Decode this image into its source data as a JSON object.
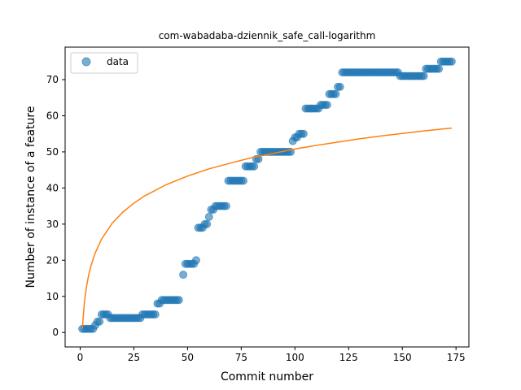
{
  "chart_data": {
    "type": "scatter",
    "title": "com-wabadaba-dziennik_safe_call-logarithm",
    "xlabel": "Commit number",
    "ylabel": "Number of instance of a feature",
    "xlim": [
      -7,
      181
    ],
    "ylim": [
      -4,
      79
    ],
    "xticks": [
      0,
      25,
      50,
      75,
      100,
      125,
      150,
      175
    ],
    "yticks": [
      0,
      10,
      20,
      30,
      40,
      50,
      60,
      70
    ],
    "grid": false,
    "legend_position": "top-left",
    "colors": {
      "data": "#1f77b4",
      "fit": "#ff7f0e"
    },
    "series": [
      {
        "name": "data",
        "kind": "scatter",
        "points": [
          [
            1,
            1
          ],
          [
            2,
            1
          ],
          [
            3,
            1
          ],
          [
            4,
            1
          ],
          [
            5,
            1
          ],
          [
            6,
            1
          ],
          [
            7,
            2
          ],
          [
            8,
            3
          ],
          [
            9,
            3
          ],
          [
            10,
            5
          ],
          [
            11,
            5
          ],
          [
            12,
            5
          ],
          [
            13,
            5
          ],
          [
            14,
            4
          ],
          [
            15,
            4
          ],
          [
            16,
            4
          ],
          [
            17,
            4
          ],
          [
            18,
            4
          ],
          [
            19,
            4
          ],
          [
            20,
            4
          ],
          [
            21,
            4
          ],
          [
            22,
            4
          ],
          [
            23,
            4
          ],
          [
            24,
            4
          ],
          [
            25,
            4
          ],
          [
            26,
            4
          ],
          [
            27,
            4
          ],
          [
            28,
            4
          ],
          [
            29,
            5
          ],
          [
            30,
            5
          ],
          [
            31,
            5
          ],
          [
            32,
            5
          ],
          [
            33,
            5
          ],
          [
            34,
            5
          ],
          [
            35,
            5
          ],
          [
            36,
            8
          ],
          [
            37,
            8
          ],
          [
            38,
            9
          ],
          [
            39,
            9
          ],
          [
            40,
            9
          ],
          [
            41,
            9
          ],
          [
            42,
            9
          ],
          [
            43,
            9
          ],
          [
            44,
            9
          ],
          [
            45,
            9
          ],
          [
            46,
            9
          ],
          [
            48,
            16
          ],
          [
            49,
            19
          ],
          [
            50,
            19
          ],
          [
            51,
            19
          ],
          [
            52,
            19
          ],
          [
            53,
            19
          ],
          [
            54,
            20
          ],
          [
            55,
            29
          ],
          [
            56,
            29
          ],
          [
            57,
            29
          ],
          [
            58,
            30
          ],
          [
            59,
            30
          ],
          [
            60,
            32
          ],
          [
            61,
            34
          ],
          [
            62,
            34
          ],
          [
            63,
            35
          ],
          [
            64,
            35
          ],
          [
            65,
            35
          ],
          [
            66,
            35
          ],
          [
            67,
            35
          ],
          [
            68,
            35
          ],
          [
            69,
            42
          ],
          [
            70,
            42
          ],
          [
            71,
            42
          ],
          [
            72,
            42
          ],
          [
            73,
            42
          ],
          [
            74,
            42
          ],
          [
            75,
            42
          ],
          [
            76,
            42
          ],
          [
            77,
            46
          ],
          [
            78,
            46
          ],
          [
            79,
            46
          ],
          [
            80,
            46
          ],
          [
            81,
            46
          ],
          [
            82,
            48
          ],
          [
            83,
            48
          ],
          [
            84,
            50
          ],
          [
            85,
            50
          ],
          [
            86,
            50
          ],
          [
            87,
            50
          ],
          [
            88,
            50
          ],
          [
            89,
            50
          ],
          [
            90,
            50
          ],
          [
            91,
            50
          ],
          [
            92,
            50
          ],
          [
            93,
            50
          ],
          [
            94,
            50
          ],
          [
            95,
            50
          ],
          [
            96,
            50
          ],
          [
            97,
            50
          ],
          [
            98,
            50
          ],
          [
            99,
            53
          ],
          [
            100,
            54
          ],
          [
            101,
            54
          ],
          [
            102,
            55
          ],
          [
            103,
            55
          ],
          [
            104,
            55
          ],
          [
            105,
            62
          ],
          [
            106,
            62
          ],
          [
            107,
            62
          ],
          [
            108,
            62
          ],
          [
            109,
            62
          ],
          [
            110,
            62
          ],
          [
            111,
            62
          ],
          [
            112,
            63
          ],
          [
            113,
            63
          ],
          [
            114,
            63
          ],
          [
            115,
            63
          ],
          [
            116,
            66
          ],
          [
            117,
            66
          ],
          [
            118,
            66
          ],
          [
            119,
            66
          ],
          [
            120,
            68
          ],
          [
            121,
            68
          ],
          [
            122,
            72
          ],
          [
            123,
            72
          ],
          [
            124,
            72
          ],
          [
            125,
            72
          ],
          [
            126,
            72
          ],
          [
            127,
            72
          ],
          [
            128,
            72
          ],
          [
            129,
            72
          ],
          [
            130,
            72
          ],
          [
            131,
            72
          ],
          [
            132,
            72
          ],
          [
            133,
            72
          ],
          [
            134,
            72
          ],
          [
            135,
            72
          ],
          [
            136,
            72
          ],
          [
            137,
            72
          ],
          [
            138,
            72
          ],
          [
            139,
            72
          ],
          [
            140,
            72
          ],
          [
            141,
            72
          ],
          [
            142,
            72
          ],
          [
            143,
            72
          ],
          [
            144,
            72
          ],
          [
            145,
            72
          ],
          [
            146,
            72
          ],
          [
            147,
            72
          ],
          [
            148,
            72
          ],
          [
            149,
            71
          ],
          [
            150,
            71
          ],
          [
            151,
            71
          ],
          [
            152,
            71
          ],
          [
            153,
            71
          ],
          [
            154,
            71
          ],
          [
            155,
            71
          ],
          [
            156,
            71
          ],
          [
            157,
            71
          ],
          [
            158,
            71
          ],
          [
            159,
            71
          ],
          [
            160,
            71
          ],
          [
            161,
            73
          ],
          [
            162,
            73
          ],
          [
            163,
            73
          ],
          [
            164,
            73
          ],
          [
            165,
            73
          ],
          [
            166,
            73
          ],
          [
            167,
            73
          ],
          [
            168,
            75
          ],
          [
            169,
            75
          ],
          [
            170,
            75
          ],
          [
            171,
            75
          ],
          [
            172,
            75
          ],
          [
            173,
            75
          ]
        ]
      },
      {
        "kind": "line",
        "function": "logarithmic",
        "points": [
          [
            1,
            1
          ],
          [
            2,
            8.5
          ],
          [
            3,
            12.9
          ],
          [
            4,
            16
          ],
          [
            5,
            18.4
          ],
          [
            7,
            22
          ],
          [
            10,
            25.9
          ],
          [
            15,
            30.3
          ],
          [
            20,
            33.4
          ],
          [
            25,
            35.8
          ],
          [
            30,
            37.8
          ],
          [
            40,
            40.9
          ],
          [
            50,
            43.3
          ],
          [
            60,
            45.3
          ],
          [
            70,
            46.9
          ],
          [
            80,
            48.4
          ],
          [
            90,
            49.6
          ],
          [
            100,
            50.8
          ],
          [
            110,
            51.8
          ],
          [
            120,
            52.7
          ],
          [
            130,
            53.6
          ],
          [
            140,
            54.4
          ],
          [
            150,
            55.1
          ],
          [
            160,
            55.8
          ],
          [
            173,
            56.6
          ]
        ]
      }
    ]
  }
}
